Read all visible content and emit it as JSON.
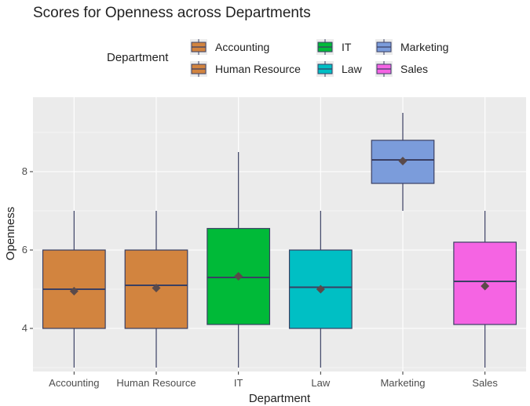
{
  "chart_data": {
    "type": "boxplot",
    "title": "Scores for Openness across Departments",
    "xlabel": "Department",
    "ylabel": "Openness",
    "ylim": [
      2.9,
      9.9
    ],
    "yticks": [
      4,
      6,
      8
    ],
    "grid": true,
    "legend": {
      "title": "Department",
      "position": "top",
      "entries": [
        "Accounting",
        "Human Resource",
        "IT",
        "Law",
        "Marketing",
        "Sales"
      ]
    },
    "categories": [
      "Accounting",
      "Human Resource",
      "IT",
      "Law",
      "Marketing",
      "Sales"
    ],
    "boxes": [
      {
        "name": "Accounting",
        "color": "#D2843F",
        "min": 3.0,
        "q1": 4.0,
        "median": 5.0,
        "q3": 6.0,
        "max": 7.0,
        "mean": 4.95
      },
      {
        "name": "Human Resource",
        "color": "#D2843F",
        "min": 3.0,
        "q1": 4.0,
        "median": 5.1,
        "q3": 6.0,
        "max": 7.0,
        "mean": 5.03
      },
      {
        "name": "IT",
        "color": "#00BA38",
        "min": 3.0,
        "q1": 4.1,
        "median": 5.3,
        "q3": 6.55,
        "max": 8.5,
        "mean": 5.33
      },
      {
        "name": "Law",
        "color": "#00BFC4",
        "min": 3.0,
        "q1": 4.0,
        "median": 5.05,
        "q3": 6.0,
        "max": 7.0,
        "mean": 5.0
      },
      {
        "name": "Marketing",
        "color": "#7B9CDB",
        "min": 7.0,
        "q1": 7.7,
        "median": 8.3,
        "q3": 8.8,
        "max": 9.5,
        "mean": 8.27
      },
      {
        "name": "Sales",
        "color": "#F564E3",
        "min": 3.0,
        "q1": 4.1,
        "median": 5.2,
        "q3": 6.2,
        "max": 7.0,
        "mean": 5.08
      }
    ]
  }
}
